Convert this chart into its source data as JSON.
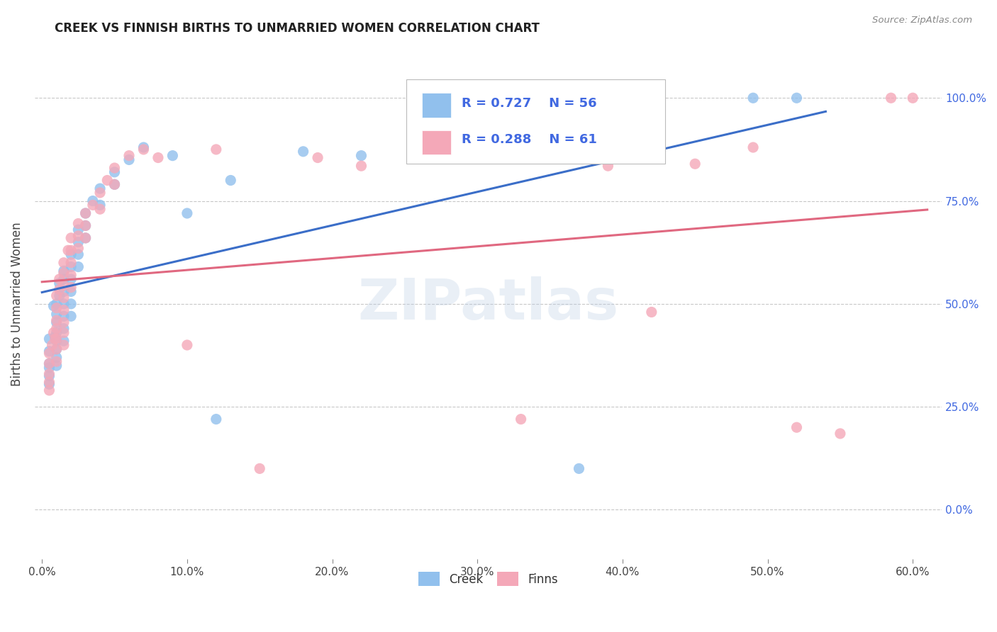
{
  "title": "CREEK VS FINNISH BIRTHS TO UNMARRIED WOMEN CORRELATION CHART",
  "source": "Source: ZipAtlas.com",
  "ylabel": "Births to Unmarried Women",
  "xlabel_ticks": [
    "0.0%",
    "10.0%",
    "20.0%",
    "30.0%",
    "40.0%",
    "50.0%",
    "60.0%"
  ],
  "xlabel_vals": [
    0.0,
    0.1,
    0.2,
    0.3,
    0.4,
    0.5,
    0.6
  ],
  "ylabel_ticks_right": [
    "0.0%",
    "25.0%",
    "50.0%",
    "75.0%",
    "100.0%"
  ],
  "ylabel_vals": [
    0.0,
    0.25,
    0.5,
    0.75,
    1.0
  ],
  "xlim": [
    -0.005,
    0.62
  ],
  "ylim": [
    -0.12,
    1.12
  ],
  "creek_color": "#91C0ED",
  "finn_color": "#F4A8B8",
  "creek_r": 0.727,
  "creek_n": 56,
  "finn_r": 0.288,
  "finn_n": 61,
  "legend_creek_label": "Creek",
  "legend_finn_label": "Finns",
  "watermark": "ZIPatlas",
  "blue_line_color": "#3B6EC8",
  "pink_line_color": "#E06880",
  "creek_scatter": [
    [
      0.005,
      0.415
    ],
    [
      0.005,
      0.385
    ],
    [
      0.005,
      0.355
    ],
    [
      0.005,
      0.345
    ],
    [
      0.005,
      0.325
    ],
    [
      0.005,
      0.305
    ],
    [
      0.008,
      0.495
    ],
    [
      0.009,
      0.42
    ],
    [
      0.01,
      0.5
    ],
    [
      0.01,
      0.475
    ],
    [
      0.01,
      0.455
    ],
    [
      0.01,
      0.43
    ],
    [
      0.01,
      0.41
    ],
    [
      0.01,
      0.39
    ],
    [
      0.01,
      0.37
    ],
    [
      0.01,
      0.35
    ],
    [
      0.012,
      0.55
    ],
    [
      0.012,
      0.52
    ],
    [
      0.015,
      0.58
    ],
    [
      0.015,
      0.56
    ],
    [
      0.015,
      0.53
    ],
    [
      0.015,
      0.5
    ],
    [
      0.015,
      0.47
    ],
    [
      0.015,
      0.44
    ],
    [
      0.015,
      0.41
    ],
    [
      0.02,
      0.62
    ],
    [
      0.02,
      0.59
    ],
    [
      0.02,
      0.56
    ],
    [
      0.02,
      0.53
    ],
    [
      0.02,
      0.5
    ],
    [
      0.02,
      0.47
    ],
    [
      0.025,
      0.68
    ],
    [
      0.025,
      0.65
    ],
    [
      0.025,
      0.62
    ],
    [
      0.025,
      0.59
    ],
    [
      0.03,
      0.72
    ],
    [
      0.03,
      0.69
    ],
    [
      0.03,
      0.66
    ],
    [
      0.035,
      0.75
    ],
    [
      0.04,
      0.78
    ],
    [
      0.04,
      0.74
    ],
    [
      0.05,
      0.82
    ],
    [
      0.05,
      0.79
    ],
    [
      0.06,
      0.85
    ],
    [
      0.07,
      0.88
    ],
    [
      0.09,
      0.86
    ],
    [
      0.1,
      0.72
    ],
    [
      0.12,
      0.22
    ],
    [
      0.13,
      0.8
    ],
    [
      0.18,
      0.87
    ],
    [
      0.22,
      0.86
    ],
    [
      0.28,
      0.88
    ],
    [
      0.37,
      0.1
    ],
    [
      0.42,
      0.9
    ],
    [
      0.49,
      1.0
    ],
    [
      0.52,
      1.0
    ]
  ],
  "finn_scatter": [
    [
      0.005,
      0.38
    ],
    [
      0.005,
      0.355
    ],
    [
      0.005,
      0.33
    ],
    [
      0.005,
      0.31
    ],
    [
      0.005,
      0.29
    ],
    [
      0.007,
      0.4
    ],
    [
      0.008,
      0.43
    ],
    [
      0.009,
      0.415
    ],
    [
      0.01,
      0.52
    ],
    [
      0.01,
      0.49
    ],
    [
      0.01,
      0.46
    ],
    [
      0.01,
      0.44
    ],
    [
      0.01,
      0.415
    ],
    [
      0.01,
      0.39
    ],
    [
      0.01,
      0.36
    ],
    [
      0.012,
      0.56
    ],
    [
      0.012,
      0.535
    ],
    [
      0.015,
      0.6
    ],
    [
      0.015,
      0.575
    ],
    [
      0.015,
      0.545
    ],
    [
      0.015,
      0.515
    ],
    [
      0.015,
      0.485
    ],
    [
      0.015,
      0.455
    ],
    [
      0.015,
      0.43
    ],
    [
      0.015,
      0.4
    ],
    [
      0.018,
      0.63
    ],
    [
      0.02,
      0.66
    ],
    [
      0.02,
      0.63
    ],
    [
      0.02,
      0.6
    ],
    [
      0.02,
      0.57
    ],
    [
      0.02,
      0.54
    ],
    [
      0.025,
      0.695
    ],
    [
      0.025,
      0.665
    ],
    [
      0.025,
      0.635
    ],
    [
      0.03,
      0.72
    ],
    [
      0.03,
      0.69
    ],
    [
      0.03,
      0.66
    ],
    [
      0.035,
      0.74
    ],
    [
      0.04,
      0.77
    ],
    [
      0.04,
      0.73
    ],
    [
      0.045,
      0.8
    ],
    [
      0.05,
      0.83
    ],
    [
      0.05,
      0.79
    ],
    [
      0.06,
      0.86
    ],
    [
      0.07,
      0.875
    ],
    [
      0.08,
      0.855
    ],
    [
      0.1,
      0.4
    ],
    [
      0.12,
      0.875
    ],
    [
      0.15,
      0.1
    ],
    [
      0.19,
      0.855
    ],
    [
      0.22,
      0.835
    ],
    [
      0.28,
      0.865
    ],
    [
      0.33,
      0.22
    ],
    [
      0.39,
      0.835
    ],
    [
      0.42,
      0.48
    ],
    [
      0.45,
      0.84
    ],
    [
      0.49,
      0.88
    ],
    [
      0.52,
      0.2
    ],
    [
      0.55,
      0.185
    ],
    [
      0.585,
      1.0
    ],
    [
      0.6,
      1.0
    ]
  ]
}
